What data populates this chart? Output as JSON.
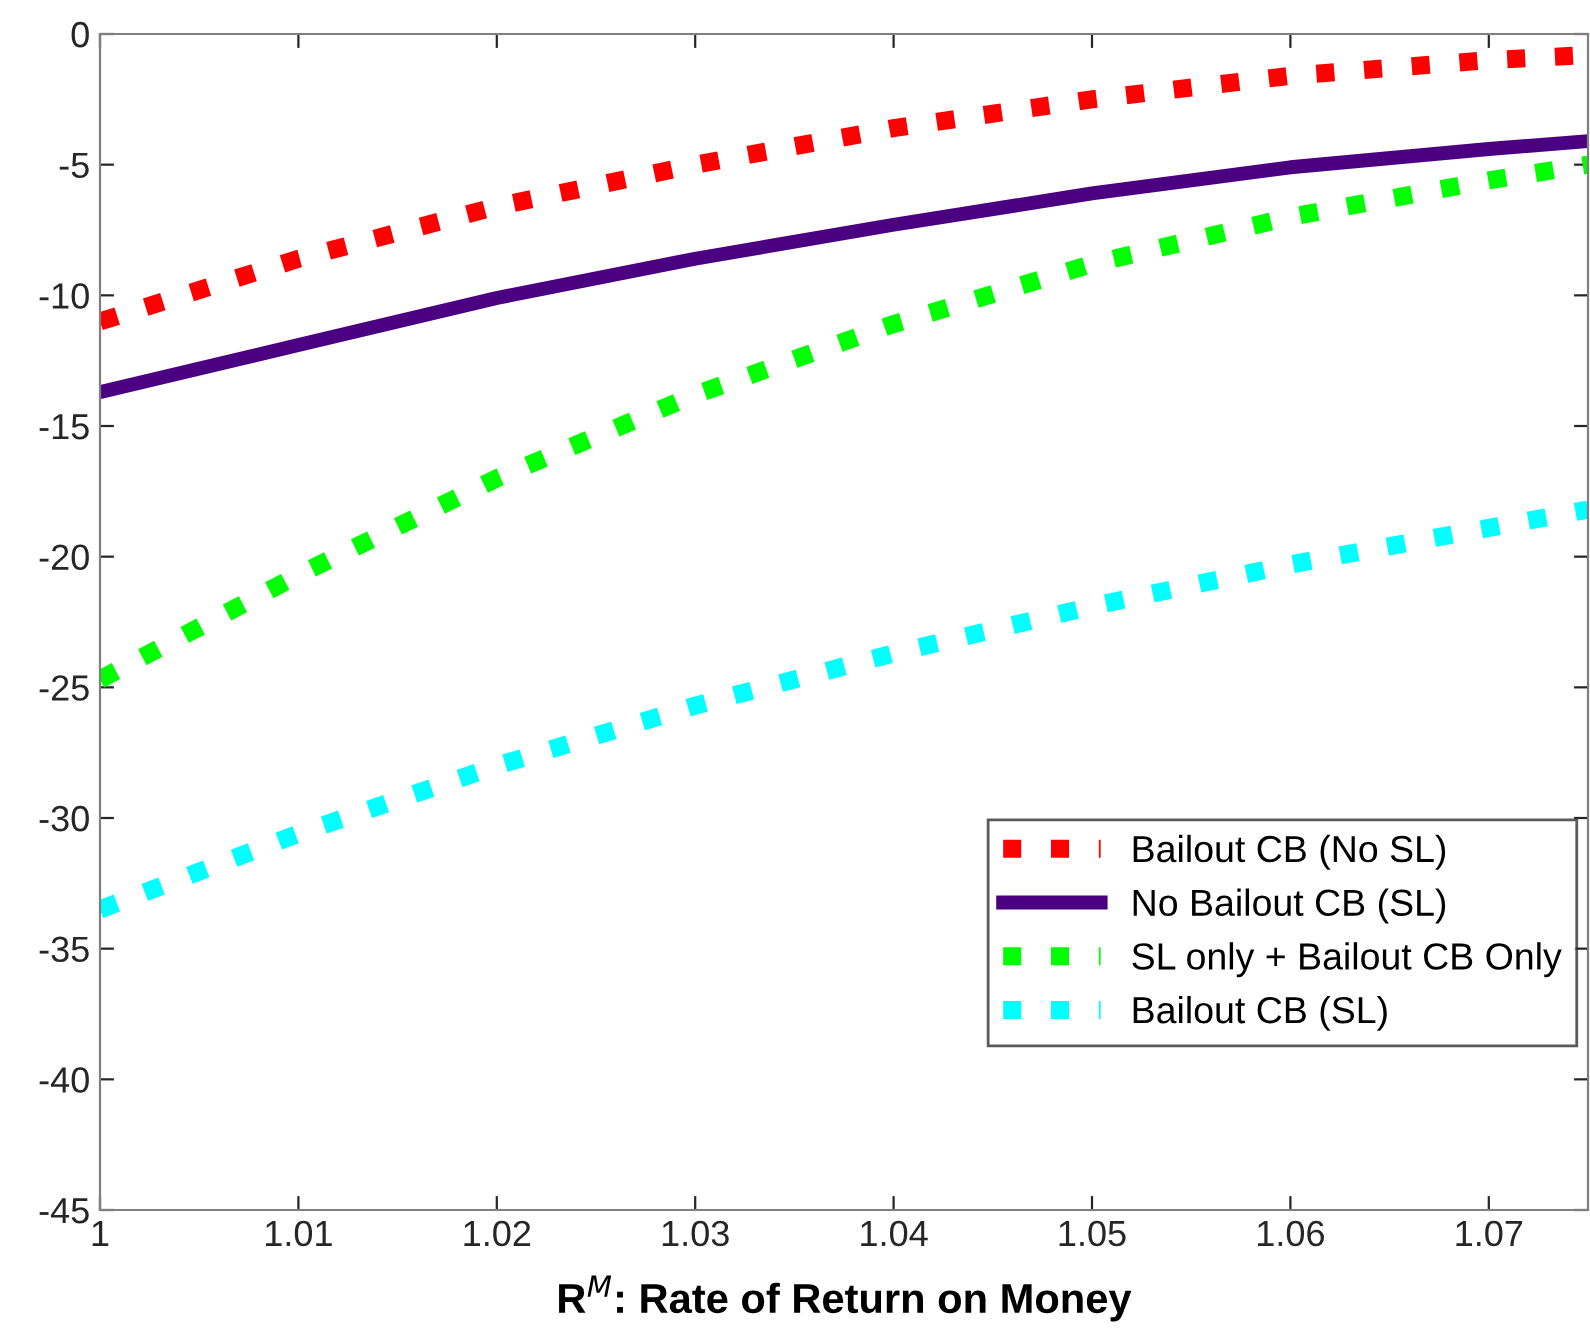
{
  "chart_data": {
    "type": "line",
    "xlabel": "R$^{M}$: Rate of Return on Money",
    "x": [
      1,
      1.01,
      1.02,
      1.03,
      1.04,
      1.05,
      1.06,
      1.07,
      1.075
    ],
    "series": [
      {
        "name": "Bailout CB (No SL)",
        "color": "#ff0000",
        "line_style": "dotted",
        "values": [
          -11,
          -8.6,
          -6.6,
          -5.0,
          -3.6,
          -2.5,
          -1.6,
          -1.0,
          -0.8
        ]
      },
      {
        "name": "No Bailout CB (SL)",
        "color": "#4b0082",
        "line_style": "solid",
        "values": [
          -13.7,
          -11.9,
          -10.1,
          -8.6,
          -7.3,
          -6.1,
          -5.1,
          -4.4,
          -4.1
        ]
      },
      {
        "name": "SL only + Bailout CB Only",
        "color": "#00ff00",
        "line_style": "dotted",
        "values": [
          -24.7,
          -20.7,
          -17.0,
          -13.8,
          -11.1,
          -8.8,
          -7.0,
          -5.6,
          -5.0
        ]
      },
      {
        "name": "Bailout CB (SL)",
        "color": "#00ffff",
        "line_style": "dotted",
        "values": [
          -33.5,
          -30.6,
          -28.0,
          -25.7,
          -23.7,
          -21.9,
          -20.3,
          -18.9,
          -18.2
        ]
      }
    ],
    "xlim": [
      1,
      1.075
    ],
    "xticks": [
      1,
      1.01,
      1.02,
      1.03,
      1.04,
      1.05,
      1.06,
      1.07
    ],
    "ylim": [
      -45,
      0
    ],
    "yticks": [
      -45,
      -40,
      -35,
      -30,
      -25,
      -20,
      -15,
      -10,
      -5,
      0
    ],
    "grid": false,
    "legend": "bottom right",
    "marker": "none"
  }
}
